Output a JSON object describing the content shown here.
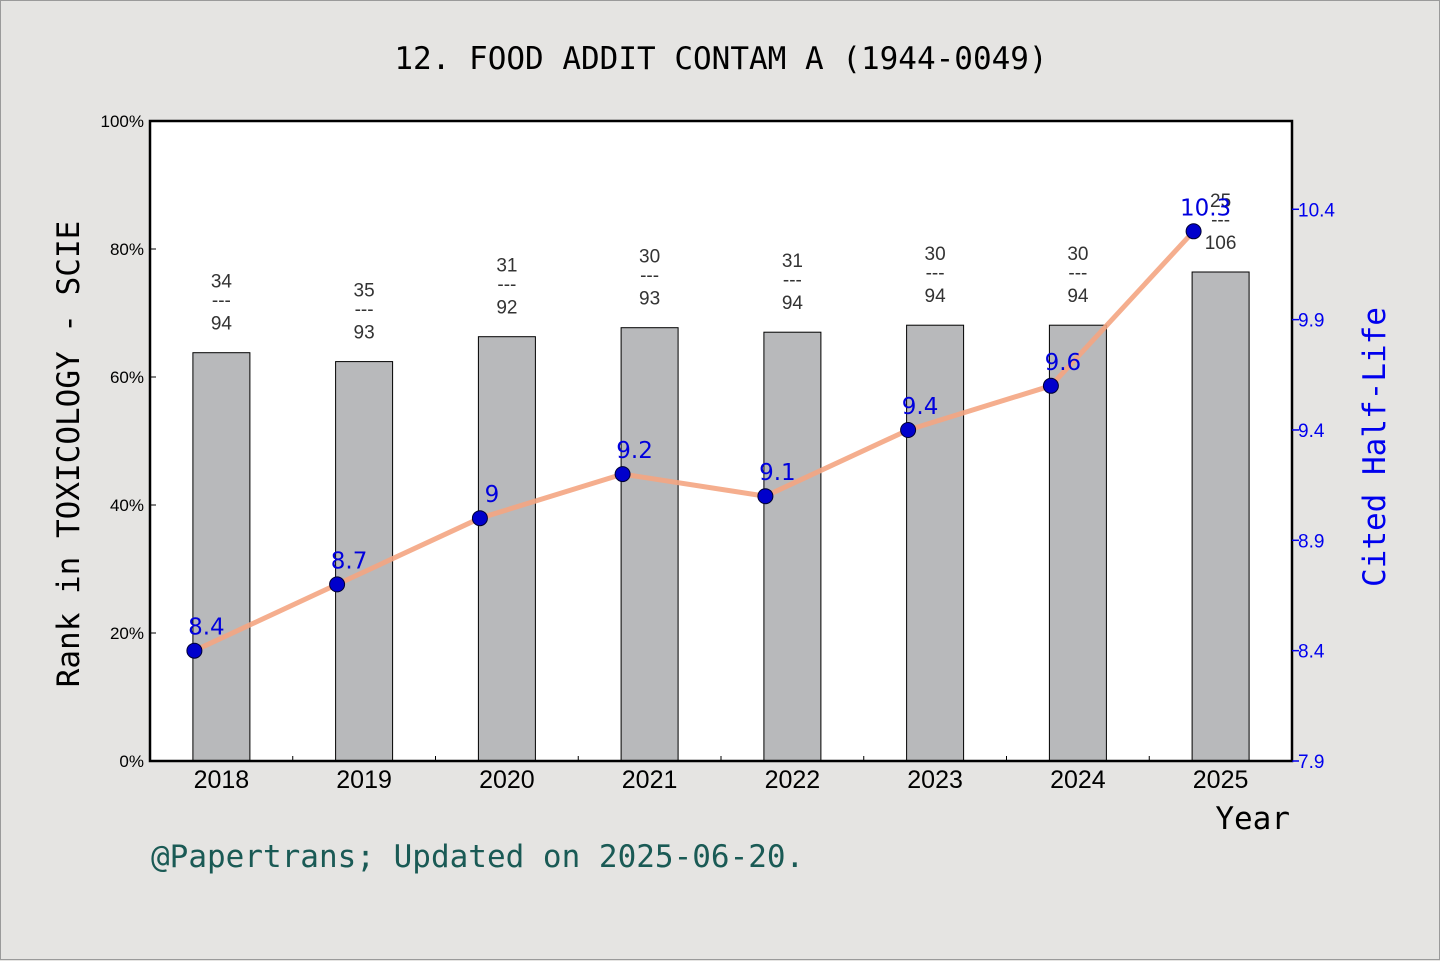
{
  "title": "12. FOOD ADDIT CONTAM A (1944-0049)",
  "footer": "@Papertrans; Updated on 2025-06-20.",
  "chart_data": {
    "type": "bar",
    "title": "12. FOOD ADDIT CONTAM A (1944-0049)",
    "xlabel": "Year",
    "ylabel": "Rank in TOXICOLOGY - SCIE",
    "y2label": "Cited Half-Life",
    "categories": [
      "2018",
      "2019",
      "2020",
      "2021",
      "2022",
      "2023",
      "2024",
      "2025"
    ],
    "ylim": [
      0,
      100
    ],
    "yticks": [
      "0%",
      "20%",
      "40%",
      "60%",
      "80%",
      "100%"
    ],
    "y2lim": [
      7.9,
      10.8
    ],
    "y2ticks": [
      "7.9",
      "8.4",
      "8.9",
      "9.4",
      "9.9",
      "10.4"
    ],
    "grid": false,
    "series": [
      {
        "type": "bar",
        "axis": "left",
        "color": "#b8b9bb",
        "values": [
          63.8,
          62.4,
          66.3,
          67.7,
          67.0,
          68.1,
          68.1,
          76.4
        ],
        "rank_labels": [
          {
            "num": "34",
            "den": "94"
          },
          {
            "num": "35",
            "den": "93"
          },
          {
            "num": "31",
            "den": "92"
          },
          {
            "num": "30",
            "den": "93"
          },
          {
            "num": "31",
            "den": "94"
          },
          {
            "num": "30",
            "den": "94"
          },
          {
            "num": "30",
            "den": "94"
          },
          {
            "num": "25",
            "den": "106"
          }
        ],
        "separator": "---"
      },
      {
        "type": "line",
        "axis": "right",
        "line_color": "#f4a582",
        "marker_color": "#0000cc",
        "values": [
          8.4,
          8.7,
          9.0,
          9.2,
          9.1,
          9.4,
          9.6,
          10.3
        ],
        "labels": [
          "8.4",
          "8.7",
          "9",
          "9.2",
          "9.1",
          "9.4",
          "9.6",
          "10.3"
        ]
      }
    ]
  }
}
